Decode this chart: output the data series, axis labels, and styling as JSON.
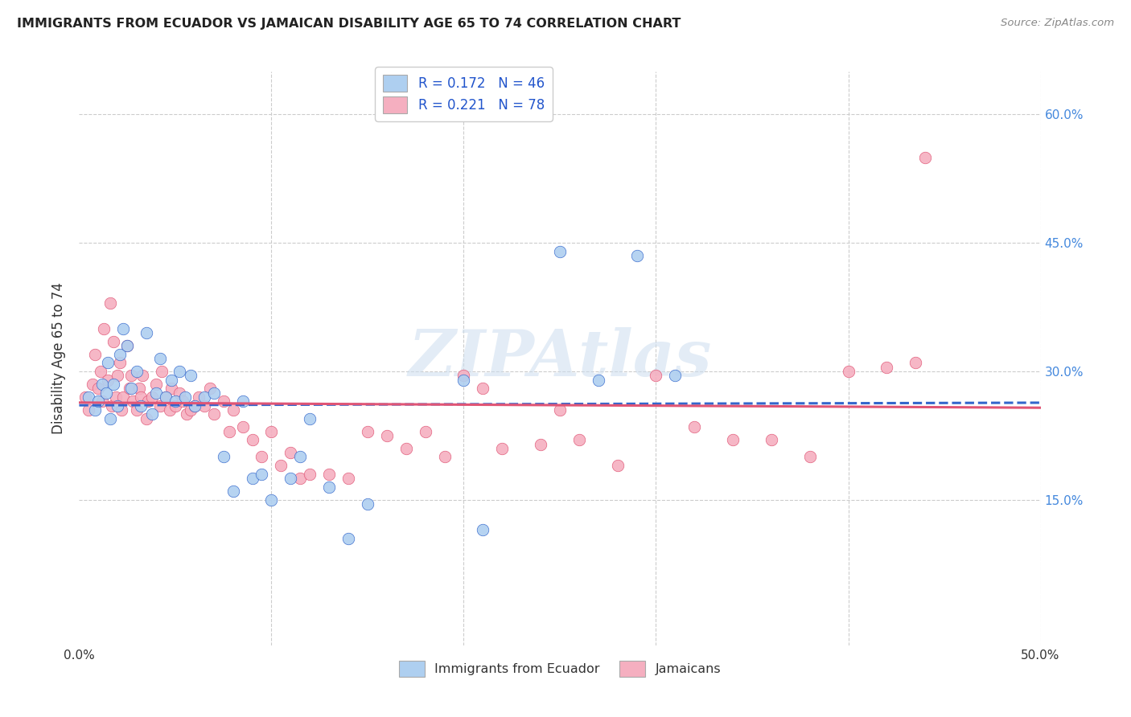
{
  "title": "IMMIGRANTS FROM ECUADOR VS JAMAICAN DISABILITY AGE 65 TO 74 CORRELATION CHART",
  "source": "Source: ZipAtlas.com",
  "ylabel": "Disability Age 65 to 74",
  "xlim": [
    0.0,
    0.5
  ],
  "ylim": [
    -0.02,
    0.65
  ],
  "r_ecuador": 0.172,
  "n_ecuador": 46,
  "r_jamaican": 0.221,
  "n_jamaican": 78,
  "color_ecuador": "#aecff0",
  "color_jamaican": "#f5afc0",
  "line_color_ecuador": "#3366cc",
  "line_color_jamaican": "#e05575",
  "background_color": "#ffffff",
  "grid_color": "#cccccc",
  "ecuador_x": [
    0.005,
    0.008,
    0.01,
    0.012,
    0.014,
    0.015,
    0.016,
    0.018,
    0.02,
    0.021,
    0.023,
    0.025,
    0.027,
    0.03,
    0.032,
    0.035,
    0.038,
    0.04,
    0.042,
    0.045,
    0.048,
    0.05,
    0.052,
    0.055,
    0.058,
    0.06,
    0.065,
    0.07,
    0.075,
    0.08,
    0.085,
    0.09,
    0.095,
    0.1,
    0.11,
    0.115,
    0.12,
    0.13,
    0.14,
    0.15,
    0.2,
    0.21,
    0.25,
    0.27,
    0.29,
    0.31
  ],
  "ecuador_y": [
    0.27,
    0.255,
    0.265,
    0.285,
    0.275,
    0.31,
    0.245,
    0.285,
    0.26,
    0.32,
    0.35,
    0.33,
    0.28,
    0.3,
    0.26,
    0.345,
    0.25,
    0.275,
    0.315,
    0.27,
    0.29,
    0.265,
    0.3,
    0.27,
    0.295,
    0.26,
    0.27,
    0.275,
    0.2,
    0.16,
    0.265,
    0.175,
    0.18,
    0.15,
    0.175,
    0.2,
    0.245,
    0.165,
    0.105,
    0.145,
    0.29,
    0.115,
    0.44,
    0.29,
    0.435,
    0.295
  ],
  "jamaican_x": [
    0.003,
    0.005,
    0.007,
    0.008,
    0.01,
    0.011,
    0.012,
    0.013,
    0.015,
    0.016,
    0.017,
    0.018,
    0.019,
    0.02,
    0.021,
    0.022,
    0.023,
    0.025,
    0.026,
    0.027,
    0.028,
    0.03,
    0.031,
    0.032,
    0.033,
    0.035,
    0.036,
    0.038,
    0.04,
    0.042,
    0.043,
    0.045,
    0.047,
    0.048,
    0.05,
    0.052,
    0.054,
    0.056,
    0.058,
    0.06,
    0.062,
    0.065,
    0.068,
    0.07,
    0.075,
    0.078,
    0.08,
    0.085,
    0.09,
    0.095,
    0.1,
    0.105,
    0.11,
    0.115,
    0.12,
    0.13,
    0.14,
    0.15,
    0.16,
    0.17,
    0.18,
    0.19,
    0.2,
    0.21,
    0.22,
    0.24,
    0.25,
    0.26,
    0.28,
    0.3,
    0.32,
    0.34,
    0.36,
    0.38,
    0.4,
    0.42,
    0.435,
    0.44
  ],
  "jamaican_y": [
    0.27,
    0.255,
    0.285,
    0.32,
    0.28,
    0.3,
    0.265,
    0.35,
    0.29,
    0.38,
    0.26,
    0.335,
    0.27,
    0.295,
    0.31,
    0.255,
    0.27,
    0.33,
    0.28,
    0.295,
    0.265,
    0.255,
    0.28,
    0.27,
    0.295,
    0.245,
    0.265,
    0.27,
    0.285,
    0.26,
    0.3,
    0.27,
    0.255,
    0.28,
    0.26,
    0.275,
    0.265,
    0.25,
    0.255,
    0.26,
    0.27,
    0.26,
    0.28,
    0.25,
    0.265,
    0.23,
    0.255,
    0.235,
    0.22,
    0.2,
    0.23,
    0.19,
    0.205,
    0.175,
    0.18,
    0.18,
    0.175,
    0.23,
    0.225,
    0.21,
    0.23,
    0.2,
    0.295,
    0.28,
    0.21,
    0.215,
    0.255,
    0.22,
    0.19,
    0.295,
    0.235,
    0.22,
    0.22,
    0.2,
    0.3,
    0.305,
    0.31,
    0.55
  ]
}
